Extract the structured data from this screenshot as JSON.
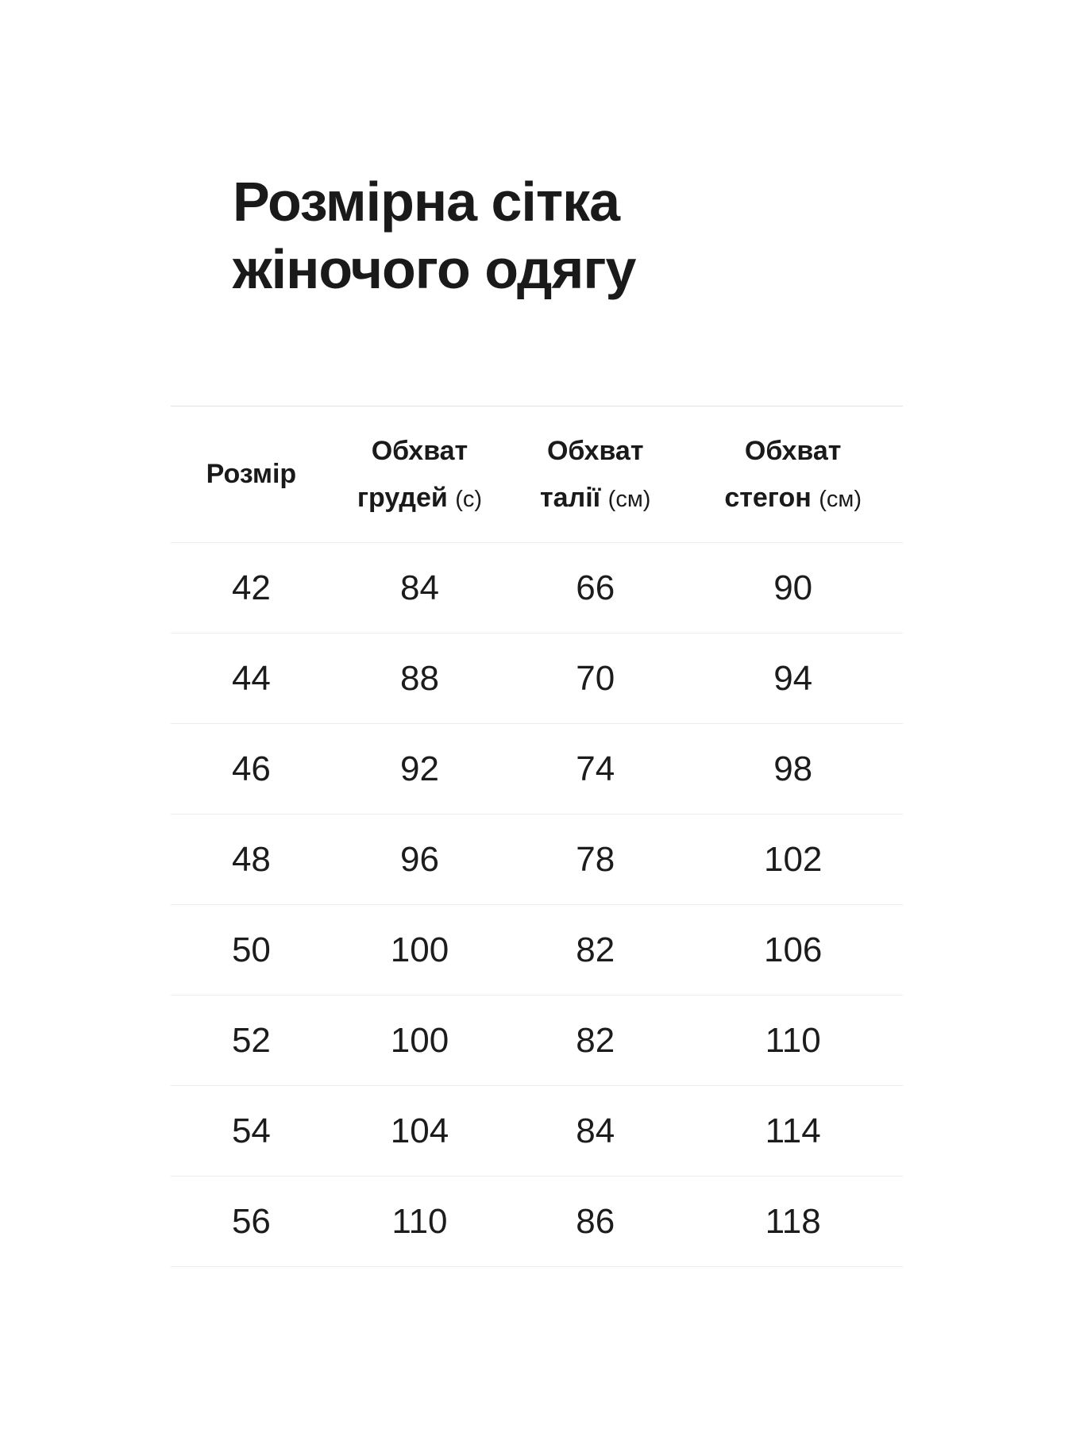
{
  "page": {
    "title_line1": "Розмірна сітка",
    "title_line2": "жіночого одягу",
    "background_color": "#ffffff",
    "text_color": "#1a1a1a",
    "separator_color": "#ececec",
    "top_border_color": "#e0e0e0"
  },
  "table": {
    "columns": [
      {
        "label": "Розмір"
      },
      {
        "line1": "Обхват",
        "line2": "грудей",
        "unit": "(с)"
      },
      {
        "line1": "Обхват",
        "line2": "талії",
        "unit": "(см)"
      },
      {
        "line1": "Обхват",
        "line2": "стегон",
        "unit": "(см)"
      }
    ],
    "rows": [
      {
        "size": "42",
        "chest": "84",
        "waist": "66",
        "hips": "90"
      },
      {
        "size": "44",
        "chest": "88",
        "waist": "70",
        "hips": "94"
      },
      {
        "size": "46",
        "chest": "92",
        "waist": "74",
        "hips": "98"
      },
      {
        "size": "48",
        "chest": "96",
        "waist": "78",
        "hips": "102"
      },
      {
        "size": "50",
        "chest": "100",
        "waist": "82",
        "hips": "106"
      },
      {
        "size": "52",
        "chest": "100",
        "waist": "82",
        "hips": "110"
      },
      {
        "size": "54",
        "chest": "104",
        "waist": "84",
        "hips": "114"
      },
      {
        "size": "56",
        "chest": "110",
        "waist": "86",
        "hips": "118"
      }
    ]
  },
  "chart_data": {
    "type": "table",
    "title": "Розмірна сітка жіночого одягу",
    "columns": [
      "Розмір",
      "Обхват грудей (с)",
      "Обхват талії (см)",
      "Обхват стегон (см)"
    ],
    "rows": [
      [
        42,
        84,
        66,
        90
      ],
      [
        44,
        88,
        70,
        94
      ],
      [
        46,
        92,
        74,
        98
      ],
      [
        48,
        96,
        78,
        102
      ],
      [
        50,
        100,
        82,
        106
      ],
      [
        52,
        100,
        82,
        110
      ],
      [
        54,
        104,
        84,
        114
      ],
      [
        56,
        110,
        86,
        118
      ]
    ]
  }
}
